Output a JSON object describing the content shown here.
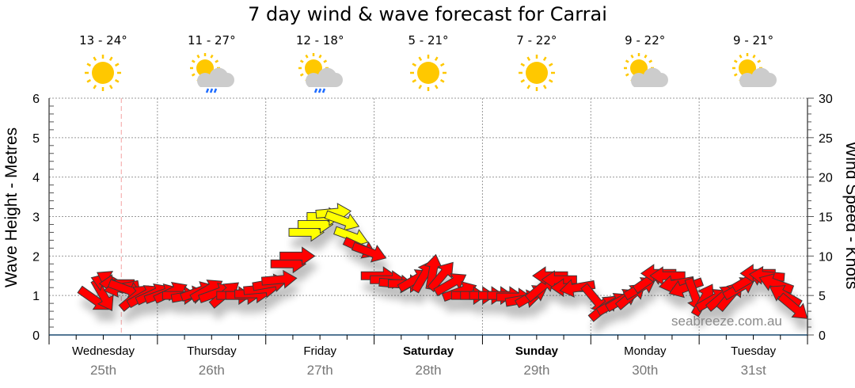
{
  "chart_data": {
    "type": "scatter",
    "title": "7 day wind & wave forecast for Carrai",
    "ylabel": "Wave Height - Metres",
    "y2label": "Wind Speed - Knots",
    "ylim": [
      0,
      6
    ],
    "y2lim": [
      0,
      30
    ],
    "yticks": [
      "0",
      "1",
      "2",
      "3",
      "4",
      "5",
      "6"
    ],
    "y2ticks": [
      "0",
      "5",
      "10",
      "15",
      "20",
      "25",
      "30"
    ],
    "x_unit": "hours from Wednesday 00:00",
    "xlim": [
      0,
      168
    ],
    "grid": true,
    "watermark": "seabreeze.com.au",
    "days": [
      {
        "name": "Wednesday",
        "date": "25th",
        "temp": "13 - 24°",
        "icon": "sunny",
        "bold": false
      },
      {
        "name": "Thursday",
        "date": "26th",
        "temp": "11 - 27°",
        "icon": "partly-cloudy-rain",
        "bold": false
      },
      {
        "name": "Friday",
        "date": "27th",
        "temp": "12 - 18°",
        "icon": "partly-cloudy-rain",
        "bold": false
      },
      {
        "name": "Saturday",
        "date": "28th",
        "temp": "5 - 21°",
        "icon": "sunny",
        "bold": true
      },
      {
        "name": "Sunday",
        "date": "29th",
        "temp": "7 - 22°",
        "icon": "sunny",
        "bold": true
      },
      {
        "name": "Monday",
        "date": "30th",
        "temp": "9 - 22°",
        "icon": "partly-cloudy",
        "bold": false
      },
      {
        "name": "Tuesday",
        "date": "31st",
        "temp": "9 - 21°",
        "icon": "partly-cloudy",
        "bold": false
      }
    ],
    "now_hour": 16,
    "colors": {
      "wind_normal": "#ff0000",
      "wind_strong": "#ffff00",
      "strong_threshold_knots": 12
    },
    "wind_series_fields": [
      "hour",
      "speed_knots",
      "arrow_angle_deg"
    ],
    "wind": [
      [
        10,
        4.5,
        35
      ],
      [
        12,
        5,
        60
      ],
      [
        13,
        6.5,
        200
      ],
      [
        14,
        6.8,
        210
      ],
      [
        15,
        6.5,
        180
      ],
      [
        16,
        6,
        170
      ],
      [
        17,
        5.8,
        20
      ],
      [
        19,
        4.8,
        -40
      ],
      [
        21,
        5,
        -30
      ],
      [
        23,
        5.2,
        -25
      ],
      [
        25,
        5.2,
        -20
      ],
      [
        27,
        5.4,
        -25
      ],
      [
        29,
        5,
        0
      ],
      [
        31,
        5,
        -10
      ],
      [
        33,
        5.5,
        -20
      ],
      [
        35,
        5.7,
        -30
      ],
      [
        37,
        5.3,
        -20
      ],
      [
        39,
        5.2,
        -40
      ],
      [
        41,
        5,
        0
      ],
      [
        43,
        5,
        0
      ],
      [
        45,
        5.2,
        0
      ],
      [
        47,
        5.8,
        -5
      ],
      [
        49,
        6.5,
        -10
      ],
      [
        51,
        7,
        -5
      ],
      [
        53,
        9,
        0
      ],
      [
        55,
        10,
        0
      ],
      [
        57,
        13,
        0
      ],
      [
        59,
        14,
        0
      ],
      [
        61,
        15,
        0
      ],
      [
        63,
        15.5,
        -5
      ],
      [
        65,
        14.5,
        20
      ],
      [
        67,
        12.5,
        20
      ],
      [
        69,
        11,
        25
      ],
      [
        71,
        10.5,
        20
      ],
      [
        73,
        7.5,
        0
      ],
      [
        75,
        7,
        0
      ],
      [
        77,
        6.5,
        5
      ],
      [
        79,
        6.5,
        0
      ],
      [
        81,
        7,
        -30
      ],
      [
        83,
        7.5,
        -60
      ],
      [
        85,
        8,
        -80
      ],
      [
        87,
        7.5,
        -50
      ],
      [
        89,
        6.5,
        -30
      ],
      [
        91,
        5.5,
        -20
      ],
      [
        93,
        5,
        0
      ],
      [
        95,
        5,
        0
      ],
      [
        97,
        5,
        0
      ],
      [
        99,
        5,
        0
      ],
      [
        101,
        5,
        0
      ],
      [
        103,
        4.8,
        0
      ],
      [
        105,
        4.5,
        -10
      ],
      [
        107,
        5,
        -30
      ],
      [
        109,
        6,
        -40
      ],
      [
        111,
        7.5,
        180
      ],
      [
        113,
        7,
        180
      ],
      [
        115,
        6,
        180
      ],
      [
        117,
        6,
        170
      ],
      [
        121,
        4.5,
        50
      ],
      [
        123,
        3.5,
        -40
      ],
      [
        125,
        4,
        -30
      ],
      [
        127,
        4.5,
        -30
      ],
      [
        129,
        5,
        -40
      ],
      [
        131,
        6,
        -30
      ],
      [
        133,
        7,
        -35
      ],
      [
        135,
        7.8,
        180
      ],
      [
        137,
        7.5,
        180
      ],
      [
        139,
        6.5,
        170
      ],
      [
        141,
        6,
        160
      ],
      [
        143,
        5,
        70
      ],
      [
        145,
        4.5,
        -60
      ],
      [
        147,
        4.5,
        -30
      ],
      [
        149,
        4.8,
        -40
      ],
      [
        151,
        5,
        -50
      ],
      [
        153,
        6,
        -30
      ],
      [
        155,
        7,
        -30
      ],
      [
        157,
        7.8,
        180
      ],
      [
        159,
        7.5,
        185
      ],
      [
        161,
        6.5,
        200
      ],
      [
        163,
        5,
        210
      ],
      [
        165,
        3.5,
        40
      ]
    ]
  }
}
